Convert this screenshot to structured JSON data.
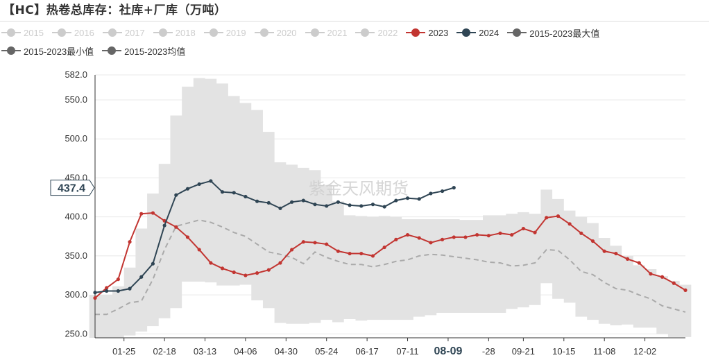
{
  "title": "【HC】热卷总库存：社库+厂库（万吨）",
  "watermark": "紫金天风期货",
  "colors": {
    "inactive": "#cccccc",
    "y2023": "#c23531",
    "y2024": "#2f4554",
    "max": "#666666",
    "min": "#666666",
    "avg": "#666666",
    "band": "#e3e3e3",
    "avg_line": "#aaaaaa",
    "axis_text": "#333333",
    "grid": "#e8e8e8"
  },
  "legend_rows": [
    [
      {
        "label": "2015",
        "active": false,
        "color": "#cccccc"
      },
      {
        "label": "2016",
        "active": false,
        "color": "#cccccc"
      },
      {
        "label": "2017",
        "active": false,
        "color": "#cccccc"
      },
      {
        "label": "2018",
        "active": false,
        "color": "#cccccc"
      },
      {
        "label": "2019",
        "active": false,
        "color": "#cccccc"
      },
      {
        "label": "2020",
        "active": false,
        "color": "#cccccc"
      },
      {
        "label": "2021",
        "active": false,
        "color": "#cccccc"
      },
      {
        "label": "2022",
        "active": false,
        "color": "#cccccc"
      },
      {
        "label": "2023",
        "active": true,
        "color": "#c23531"
      },
      {
        "label": "2024",
        "active": true,
        "color": "#2f4554"
      },
      {
        "label": "2015-2023最大值",
        "active": true,
        "color": "#666666"
      }
    ],
    [
      {
        "label": "2015-2023最小值",
        "active": true,
        "color": "#666666"
      },
      {
        "label": "2015-2023均值",
        "active": true,
        "color": "#666666"
      }
    ]
  ],
  "chart_data": {
    "type": "line",
    "title": "【HC】热卷总库存：社库+厂库（万吨）",
    "x_ticks": [
      "01-25",
      "02-18",
      "03-13",
      "04-06",
      "04-30",
      "05-24",
      "06-17",
      "07-11",
      "08-09",
      "-28",
      "09-21",
      "10-15",
      "11-08",
      "12-02"
    ],
    "x_tick_week": [
      2.5,
      6,
      9.5,
      13,
      16.5,
      20,
      23.5,
      27,
      30.5,
      34,
      37,
      40.5,
      44,
      47.5
    ],
    "highlight_tick": "08-09",
    "y_ticks": [
      "250.0",
      "300.0",
      "350.0",
      "400.0",
      "450.0",
      "500.0",
      "550.0",
      "582.0"
    ],
    "ylim": [
      245.0,
      582.0
    ],
    "y_tooltip": "437.4",
    "grid": true,
    "series": [
      {
        "name": "2023",
        "color": "#c23531",
        "values": [
          296,
          309,
          320,
          368,
          404,
          405,
          395,
          387,
          374,
          358,
          341,
          334,
          329,
          325,
          328,
          332,
          341,
          358,
          368,
          367,
          365,
          356,
          353,
          353,
          350,
          361,
          371,
          377,
          373,
          367,
          371,
          374,
          374,
          377,
          376,
          379,
          377,
          385,
          380,
          399,
          401,
          391,
          379,
          369,
          356,
          353,
          346,
          341,
          327,
          323,
          315,
          306
        ]
      },
      {
        "name": "2024",
        "color": "#2f4554",
        "values": [
          303,
          305,
          305,
          308,
          323,
          340,
          389,
          428,
          436,
          442,
          446,
          432,
          431,
          426,
          420,
          418,
          411,
          419,
          421,
          416,
          414,
          419,
          415,
          414,
          416,
          413,
          421,
          424,
          423,
          430,
          433,
          437.4
        ]
      },
      {
        "name": "2015-2023最大值",
        "values": [
          300,
          300,
          311,
          335,
          385,
          430,
          468,
          530,
          567,
          578,
          577,
          571,
          555,
          546,
          537,
          509,
          470,
          467,
          463,
          460,
          441,
          420,
          402,
          401,
          400,
          401,
          400,
          397,
          397,
          397,
          397,
          397,
          396,
          396,
          402,
          402,
          404,
          406,
          404,
          435,
          423,
          408,
          400,
          392,
          373,
          363,
          350,
          338,
          333,
          324,
          318,
          313
        ]
      },
      {
        "name": "2015-2023最小值",
        "values": [
          245,
          245,
          245,
          248,
          253,
          260,
          270,
          283,
          317,
          317,
          316,
          312,
          312,
          313,
          293,
          283,
          264,
          263,
          263,
          264,
          268,
          265,
          269,
          267,
          268,
          268,
          268,
          268,
          272,
          274,
          277,
          277,
          277,
          277,
          277,
          277,
          282,
          284,
          287,
          315,
          295,
          290,
          272,
          268,
          263,
          261,
          262,
          258,
          258,
          250,
          246,
          246
        ]
      },
      {
        "name": "2015-2023均值",
        "values": [
          275,
          275,
          282,
          290,
          292,
          320,
          358,
          388,
          392,
          396,
          393,
          387,
          380,
          375,
          365,
          355,
          352,
          348,
          340,
          355,
          348,
          343,
          339,
          339,
          336,
          339,
          343,
          345,
          350,
          352,
          351,
          349,
          347,
          345,
          342,
          341,
          337,
          338,
          341,
          358,
          357,
          345,
          330,
          326,
          316,
          308,
          306,
          300,
          295,
          286,
          282,
          278
        ]
      }
    ]
  }
}
